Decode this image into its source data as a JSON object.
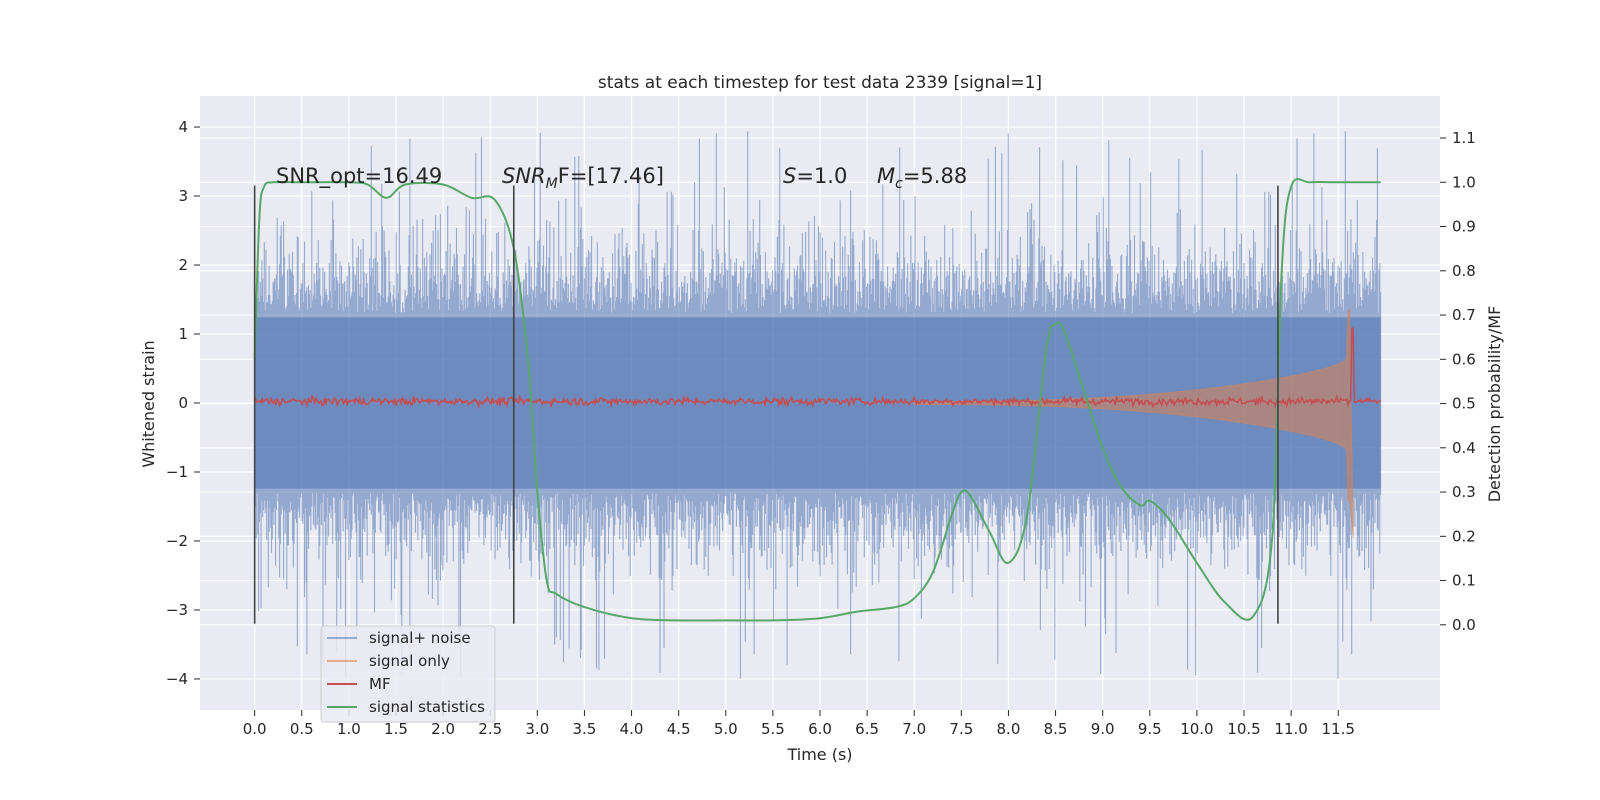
{
  "chart_data": {
    "type": "line",
    "title": "stats at each timestep for test data 2339 [signal=1]",
    "xlabel": "Time (s)",
    "ylabel": "Whitened strain",
    "ylabel_right": "Detection probability/MF",
    "xlim": [
      -0.58,
      12.58
    ],
    "ylim": [
      -4.45,
      4.45
    ],
    "ylim_right": [
      -0.1925,
      1.195
    ],
    "x_ticks": [
      0.0,
      0.5,
      1.0,
      1.5,
      2.0,
      2.5,
      3.0,
      3.5,
      4.0,
      4.5,
      5.0,
      5.5,
      6.0,
      6.5,
      7.0,
      7.5,
      8.0,
      8.5,
      9.0,
      9.5,
      10.0,
      10.5,
      11.0,
      11.5
    ],
    "x_tick_labels": [
      "0.0",
      "0.5",
      "1.0",
      "1.5",
      "2.0",
      "2.5",
      "3.0",
      "3.5",
      "4.0",
      "4.5",
      "5.0",
      "5.5",
      "6.0",
      "6.5",
      "7.0",
      "7.5",
      "8.0",
      "8.5",
      "9.0",
      "9.5",
      "10.0",
      "10.5",
      "11.0",
      "11.5"
    ],
    "y_ticks": [
      -4,
      -3,
      -2,
      -1,
      0,
      1,
      2,
      3,
      4
    ],
    "y_tick_labels": [
      "−4",
      "−3",
      "−2",
      "−1",
      "0",
      "1",
      "2",
      "3",
      "4"
    ],
    "y_right_ticks": [
      0.0,
      0.1,
      0.2,
      0.3,
      0.4,
      0.5,
      0.6,
      0.7,
      0.8,
      0.9,
      1.0,
      1.1
    ],
    "y_right_tick_labels": [
      "0.0",
      "0.1",
      "0.2",
      "0.3",
      "0.4",
      "0.5",
      "0.6",
      "0.7",
      "0.8",
      "0.9",
      "1.0",
      "1.1"
    ],
    "grid": true,
    "legend_position": "lower-left",
    "annotations": {
      "snr_opt": "SNR_opt=16.49",
      "snr_mf_base": "SNR",
      "snr_mf_sub": "M",
      "snr_mf_rest": "F=[17.46]",
      "s_label": "S",
      "s_value": "=1.0",
      "mc_label": "M",
      "mc_sub": "c",
      "mc_value": "=5.88"
    },
    "vertical_lines_x": [
      0.0,
      2.75,
      10.86
    ],
    "series": [
      {
        "name": "signal+ noise",
        "axis": "left",
        "color": "#4c72b0",
        "x_range": [
          0.0,
          11.95
        ],
        "band": [
          -2.0,
          2.0
        ],
        "peak_range": [
          -4.1,
          4.05
        ]
      },
      {
        "name": "signal only",
        "axis": "left",
        "color": "#dd8452",
        "description_points": [
          [
            7.0,
            0.0
          ],
          [
            9.0,
            0.18
          ],
          [
            10.0,
            0.3
          ],
          [
            11.0,
            0.5
          ],
          [
            11.4,
            0.8
          ],
          [
            11.6,
            1.35
          ],
          [
            11.65,
            -1.95
          ]
        ]
      },
      {
        "name": "MF",
        "axis": "right",
        "color": "#c44e52",
        "x_range": [
          0.0,
          11.95
        ],
        "base": 0.505,
        "peak": [
          11.65,
          0.67
        ]
      },
      {
        "name": "signal statistics",
        "axis": "right",
        "color": "#55a868",
        "x": [
          0.0,
          0.05,
          0.1,
          0.2,
          0.5,
          1.0,
          1.2,
          1.4,
          1.6,
          2.0,
          2.3,
          2.55,
          2.75,
          2.9,
          3.0,
          3.1,
          3.2,
          3.5,
          4.0,
          4.5,
          5.0,
          5.5,
          6.0,
          6.4,
          6.8,
          7.0,
          7.2,
          7.4,
          7.5,
          7.6,
          7.8,
          8.0,
          8.2,
          8.4,
          8.5,
          8.6,
          8.8,
          9.0,
          9.2,
          9.4,
          9.5,
          9.7,
          10.0,
          10.3,
          10.6,
          10.8,
          10.9,
          11.0,
          11.2,
          11.5,
          11.95
        ],
        "y": [
          0.6,
          0.92,
          0.99,
          1.0,
          1.0,
          1.0,
          0.995,
          0.965,
          0.995,
          0.995,
          0.965,
          0.96,
          0.85,
          0.6,
          0.3,
          0.1,
          0.07,
          0.04,
          0.015,
          0.01,
          0.01,
          0.01,
          0.015,
          0.03,
          0.04,
          0.06,
          0.12,
          0.25,
          0.3,
          0.29,
          0.21,
          0.14,
          0.25,
          0.62,
          0.68,
          0.66,
          0.53,
          0.4,
          0.31,
          0.27,
          0.28,
          0.24,
          0.14,
          0.05,
          0.02,
          0.2,
          0.8,
          0.99,
          1.0,
          1.0,
          1.0
        ]
      }
    ]
  }
}
